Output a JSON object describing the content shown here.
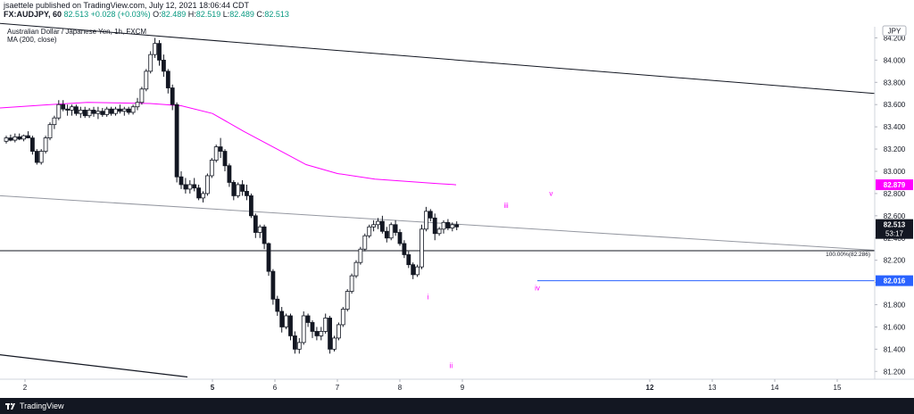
{
  "header": {
    "published": "jsaettele published on TradingView.com, July 12, 2021 18:06:44 CDT",
    "symbol": "FX:AUDJPY, 60",
    "price": "82.513",
    "change": "+0.028 (+0.03%)",
    "o_label": "O:",
    "o": "82.489",
    "h_label": "H:",
    "h": "82.519",
    "l_label": "L:",
    "l": "82.489",
    "c_label": "C:",
    "c": "82.513"
  },
  "footer": {
    "brand": "TradingView"
  },
  "colors": {
    "up": "#ffffff",
    "down": "#131722",
    "ma": "#ff00ff",
    "level": "#2962ff",
    "trendline": "#131722",
    "gray_line": "#9598a1"
  },
  "chart_data": {
    "type": "candlestick",
    "title": "Australian Dollar / Japanese Yen, 1h, FXCM",
    "indicator": "MA (200, close)",
    "currency": "JPY",
    "x_ticks": [
      "2",
      "5",
      "6",
      "7",
      "8",
      "9",
      "12",
      "13",
      "14",
      "15"
    ],
    "x_ticks_bold": [
      "5",
      "12"
    ],
    "x_range": [
      1.6,
      15.6
    ],
    "y_ticks": [
      "84.200",
      "84.000",
      "83.800",
      "83.600",
      "83.400",
      "83.200",
      "83.000",
      "82.800",
      "82.600",
      "82.400",
      "82.200",
      "82.000",
      "81.800",
      "81.600",
      "81.400",
      "81.200"
    ],
    "ylim": [
      81.13,
      84.3
    ],
    "last_price": "82.513",
    "countdown": "53:17",
    "ma_last": "82.879",
    "level_value": "82.016",
    "fib_label": "100.00%(82.286)",
    "fib_value": 82.286,
    "wave_labels": [
      {
        "text": "i",
        "x": 8.45,
        "y": 81.85
      },
      {
        "text": "ii",
        "x": 8.82,
        "y": 81.23
      },
      {
        "text": "iii",
        "x": 9.7,
        "y": 82.67
      },
      {
        "text": "iv",
        "x": 10.2,
        "y": 81.93
      },
      {
        "text": "v",
        "x": 10.42,
        "y": 82.78
      }
    ],
    "ma_points": [
      [
        1.6,
        83.57
      ],
      [
        2.4,
        83.6
      ],
      [
        3.0,
        83.62
      ],
      [
        4.0,
        83.61
      ],
      [
        4.5,
        83.59
      ],
      [
        5.0,
        83.52
      ],
      [
        5.5,
        83.36
      ],
      [
        6.0,
        83.21
      ],
      [
        6.5,
        83.06
      ],
      [
        7.0,
        82.98
      ],
      [
        7.6,
        82.93
      ],
      [
        8.1,
        82.91
      ],
      [
        8.6,
        82.89
      ],
      [
        8.9,
        82.879
      ]
    ],
    "trendlines": [
      {
        "from": [
          1.6,
          84.33
        ],
        "to": [
          15.6,
          83.7
        ],
        "color": "#131722"
      },
      {
        "from": [
          1.6,
          82.78
        ],
        "to": [
          15.6,
          82.29
        ],
        "color": "#9598a1"
      },
      {
        "from": [
          1.6,
          81.35
        ],
        "to": [
          4.6,
          81.15
        ],
        "color": "#131722"
      }
    ],
    "horizontal_lines": [
      {
        "value": 82.286,
        "from": 1.6,
        "to": 15.6,
        "color": "#131722"
      },
      {
        "value": 82.016,
        "from": 10.2,
        "to": 15.6,
        "color": "#2962ff"
      }
    ],
    "candles": [
      [
        1.7,
        83.27,
        83.32,
        83.25,
        83.3
      ],
      [
        1.77,
        83.3,
        83.33,
        83.27,
        83.28
      ],
      [
        1.84,
        83.28,
        83.34,
        83.26,
        83.31
      ],
      [
        1.91,
        83.31,
        83.34,
        83.28,
        83.29
      ],
      [
        1.98,
        83.29,
        83.33,
        83.27,
        83.32
      ],
      [
        2.05,
        83.32,
        83.36,
        83.3,
        83.3
      ],
      [
        2.12,
        83.3,
        83.32,
        83.15,
        83.18
      ],
      [
        2.19,
        83.18,
        83.2,
        83.06,
        83.08
      ],
      [
        2.26,
        83.08,
        83.2,
        83.06,
        83.18
      ],
      [
        2.33,
        83.18,
        83.32,
        83.16,
        83.3
      ],
      [
        2.4,
        83.3,
        83.44,
        83.28,
        83.42
      ],
      [
        2.47,
        83.42,
        83.5,
        83.38,
        83.48
      ],
      [
        2.54,
        83.48,
        83.64,
        83.46,
        83.6
      ],
      [
        2.61,
        83.6,
        83.64,
        83.54,
        83.56
      ],
      [
        2.68,
        83.56,
        83.6,
        83.5,
        83.55
      ],
      [
        2.75,
        83.55,
        83.6,
        83.5,
        83.58
      ],
      [
        2.82,
        83.58,
        83.6,
        83.5,
        83.52
      ],
      [
        2.89,
        83.52,
        83.58,
        83.48,
        83.55
      ],
      [
        2.96,
        83.55,
        83.58,
        83.48,
        83.5
      ],
      [
        3.03,
        83.5,
        83.57,
        83.48,
        83.55
      ],
      [
        3.1,
        83.55,
        83.58,
        83.49,
        83.52
      ],
      [
        3.17,
        83.52,
        83.58,
        83.47,
        83.54
      ],
      [
        3.24,
        83.54,
        83.57,
        83.49,
        83.51
      ],
      [
        3.31,
        83.51,
        83.58,
        83.49,
        83.56
      ],
      [
        3.38,
        83.56,
        83.58,
        83.5,
        83.52
      ],
      [
        3.45,
        83.52,
        83.58,
        83.5,
        83.56
      ],
      [
        3.52,
        83.56,
        83.6,
        83.52,
        83.54
      ],
      [
        3.59,
        83.54,
        83.58,
        83.5,
        83.56
      ],
      [
        3.66,
        83.56,
        83.58,
        83.51,
        83.53
      ],
      [
        3.73,
        83.53,
        83.6,
        83.51,
        83.58
      ],
      [
        3.8,
        83.58,
        83.66,
        83.55,
        83.62
      ],
      [
        3.87,
        83.62,
        83.76,
        83.6,
        83.74
      ],
      [
        3.94,
        83.74,
        83.92,
        83.72,
        83.9
      ],
      [
        4.01,
        83.9,
        84.08,
        83.88,
        84.05
      ],
      [
        4.08,
        84.05,
        84.2,
        84.02,
        84.15
      ],
      [
        4.15,
        84.15,
        84.18,
        83.95,
        84.0
      ],
      [
        4.22,
        84.0,
        84.05,
        83.85,
        83.9
      ],
      [
        4.29,
        83.9,
        83.92,
        83.7,
        83.75
      ],
      [
        4.36,
        83.75,
        83.78,
        83.55,
        83.6
      ],
      [
        4.43,
        83.6,
        83.62,
        82.9,
        82.95
      ],
      [
        4.5,
        82.95,
        83.0,
        82.84,
        82.88
      ],
      [
        4.57,
        82.88,
        82.94,
        82.8,
        82.84
      ],
      [
        4.64,
        82.84,
        82.92,
        82.8,
        82.88
      ],
      [
        4.71,
        82.88,
        82.94,
        82.82,
        82.85
      ],
      [
        4.78,
        82.85,
        82.88,
        82.74,
        82.76
      ],
      [
        4.85,
        82.76,
        82.82,
        82.72,
        82.8
      ],
      [
        4.92,
        82.8,
        82.98,
        82.78,
        82.96
      ],
      [
        4.99,
        82.96,
        83.12,
        82.94,
        83.1
      ],
      [
        5.06,
        83.1,
        83.24,
        83.08,
        83.22
      ],
      [
        5.13,
        83.22,
        83.3,
        83.12,
        83.18
      ],
      [
        5.2,
        83.18,
        83.2,
        83.0,
        83.05
      ],
      [
        5.27,
        83.05,
        83.07,
        82.86,
        82.9
      ],
      [
        5.34,
        82.9,
        82.92,
        82.74,
        82.78
      ],
      [
        5.41,
        82.78,
        82.9,
        82.76,
        82.88
      ],
      [
        5.48,
        82.88,
        82.92,
        82.78,
        82.82
      ],
      [
        5.55,
        82.82,
        82.88,
        82.74,
        82.78
      ],
      [
        5.62,
        82.78,
        82.8,
        82.58,
        82.6
      ],
      [
        5.69,
        82.6,
        82.62,
        82.4,
        82.45
      ],
      [
        5.76,
        82.45,
        82.52,
        82.4,
        82.5
      ],
      [
        5.83,
        82.5,
        82.52,
        82.3,
        82.35
      ],
      [
        5.9,
        82.35,
        82.36,
        82.06,
        82.1
      ],
      [
        5.97,
        82.1,
        82.12,
        81.8,
        81.85
      ],
      [
        6.04,
        81.85,
        81.88,
        81.7,
        81.74
      ],
      [
        6.11,
        81.74,
        81.78,
        81.55,
        81.6
      ],
      [
        6.18,
        81.6,
        81.72,
        81.58,
        81.7
      ],
      [
        6.25,
        81.7,
        81.72,
        81.48,
        81.52
      ],
      [
        6.32,
        81.52,
        81.56,
        81.36,
        81.4
      ],
      [
        6.39,
        81.4,
        81.5,
        81.36,
        81.46
      ],
      [
        6.46,
        81.46,
        81.74,
        81.44,
        81.7
      ],
      [
        6.53,
        81.7,
        81.72,
        81.6,
        81.64
      ],
      [
        6.6,
        81.64,
        81.66,
        81.5,
        81.56
      ],
      [
        6.67,
        81.56,
        81.6,
        81.48,
        81.52
      ],
      [
        6.74,
        81.52,
        81.6,
        81.48,
        81.56
      ],
      [
        6.81,
        81.56,
        81.72,
        81.54,
        81.68
      ],
      [
        6.88,
        81.68,
        81.7,
        81.36,
        81.4
      ],
      [
        6.95,
        81.4,
        81.52,
        81.38,
        81.5
      ],
      [
        7.02,
        81.5,
        81.64,
        81.48,
        81.62
      ],
      [
        7.09,
        81.62,
        81.78,
        81.6,
        81.76
      ],
      [
        7.16,
        81.76,
        81.94,
        81.74,
        81.92
      ],
      [
        7.23,
        81.92,
        82.08,
        81.9,
        82.06
      ],
      [
        7.3,
        82.06,
        82.2,
        82.04,
        82.18
      ],
      [
        7.37,
        82.18,
        82.32,
        82.16,
        82.3
      ],
      [
        7.44,
        82.3,
        82.44,
        82.28,
        82.42
      ],
      [
        7.51,
        82.42,
        82.52,
        82.4,
        82.5
      ],
      [
        7.58,
        82.5,
        82.56,
        82.46,
        82.52
      ],
      [
        7.65,
        82.52,
        82.58,
        82.48,
        82.55
      ],
      [
        7.72,
        82.55,
        82.6,
        82.44,
        82.46
      ],
      [
        7.79,
        82.46,
        82.5,
        82.36,
        82.4
      ],
      [
        7.86,
        82.4,
        82.54,
        82.38,
        82.52
      ],
      [
        7.93,
        82.52,
        82.56,
        82.42,
        82.45
      ],
      [
        8.0,
        82.45,
        82.48,
        82.33,
        82.35
      ],
      [
        8.07,
        82.35,
        82.38,
        82.22,
        82.25
      ],
      [
        8.14,
        82.25,
        82.28,
        82.13,
        82.16
      ],
      [
        8.21,
        82.16,
        82.18,
        82.03,
        82.07
      ],
      [
        8.28,
        82.07,
        82.16,
        82.05,
        82.14
      ],
      [
        8.35,
        82.14,
        82.52,
        82.12,
        82.48
      ],
      [
        8.42,
        82.48,
        82.68,
        82.46,
        82.64
      ],
      [
        8.49,
        82.64,
        82.66,
        82.55,
        82.58
      ],
      [
        8.56,
        82.58,
        82.62,
        82.38,
        82.44
      ],
      [
        8.63,
        82.44,
        82.5,
        82.42,
        82.48
      ],
      [
        8.7,
        82.48,
        82.56,
        82.44,
        82.54
      ],
      [
        8.77,
        82.54,
        82.57,
        82.47,
        82.49
      ],
      [
        8.84,
        82.49,
        82.54,
        82.46,
        82.52
      ],
      [
        8.91,
        82.52,
        82.55,
        82.47,
        82.5
      ]
    ]
  }
}
